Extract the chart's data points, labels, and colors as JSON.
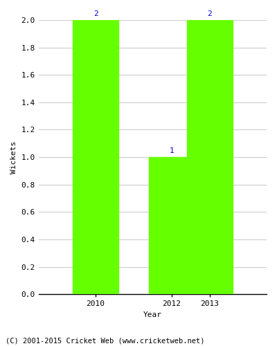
{
  "years": [
    2010,
    2012,
    2013
  ],
  "wickets": [
    2,
    1,
    2
  ],
  "bar_color": "#66ff00",
  "bar_width": 0.8,
  "xlabel": "Year",
  "ylabel": "Wickets",
  "ylim": [
    0,
    2.0
  ],
  "yticks": [
    0.0,
    0.2,
    0.4,
    0.6,
    0.8,
    1.0,
    1.2,
    1.4,
    1.6,
    1.8,
    2.0
  ],
  "annotation_color": "#0000cc",
  "annotation_fontsize": 8,
  "tick_fontsize": 8,
  "footer_text": "(C) 2001-2015 Cricket Web (www.cricketweb.net)",
  "footer_fontsize": 7.5,
  "background_color": "#ffffff",
  "grid_color": "#cccccc",
  "xlabel_fontsize": 8,
  "ylabel_fontsize": 8,
  "xlim_left": 2008.5,
  "xlim_right": 2014.5
}
